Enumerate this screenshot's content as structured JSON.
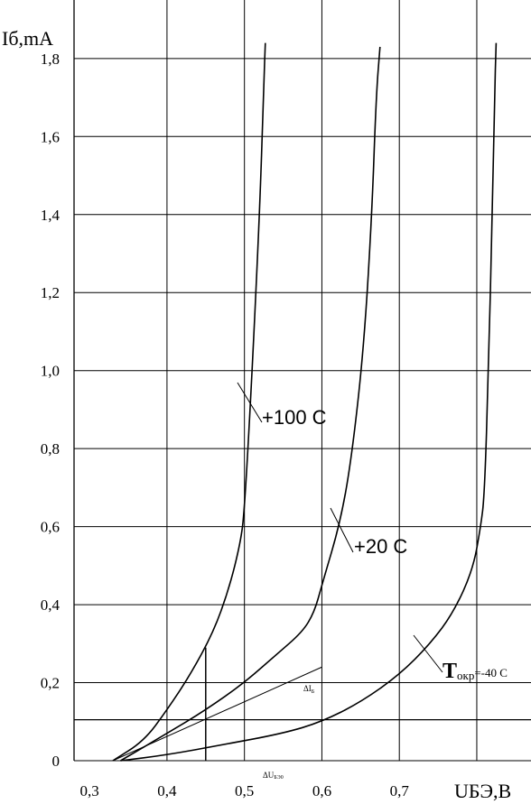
{
  "chart_data": {
    "type": "line",
    "ylabel": "Iб,mA",
    "xlabel": "UБЭ,B",
    "x_ticks": [
      "0,3",
      "0,4",
      "0,5",
      "0,6",
      "0,7"
    ],
    "y_ticks": [
      "0",
      "0,2",
      "0,4",
      "0,6",
      "0,8",
      "1,0",
      "1,2",
      "1,4",
      "1,6",
      "1,8"
    ],
    "xlim": [
      0.28,
      0.87
    ],
    "ylim": [
      0.0,
      1.95
    ],
    "grid": true,
    "series": [
      {
        "name": "+100 C",
        "points": [
          [
            0.33,
            0.0
          ],
          [
            0.37,
            0.05
          ],
          [
            0.4,
            0.13
          ],
          [
            0.43,
            0.22
          ],
          [
            0.46,
            0.33
          ],
          [
            0.48,
            0.44
          ],
          [
            0.495,
            0.56
          ],
          [
            0.5,
            0.64
          ],
          [
            0.51,
            1.0
          ],
          [
            0.52,
            1.42
          ],
          [
            0.525,
            1.74
          ],
          [
            0.527,
            1.84
          ]
        ]
      },
      {
        "name": "+20 C",
        "points": [
          [
            0.34,
            0.0
          ],
          [
            0.4,
            0.07
          ],
          [
            0.45,
            0.13
          ],
          [
            0.5,
            0.2
          ],
          [
            0.54,
            0.27
          ],
          [
            0.575,
            0.33
          ],
          [
            0.59,
            0.38
          ],
          [
            0.6,
            0.45
          ],
          [
            0.625,
            0.62
          ],
          [
            0.64,
            0.8
          ],
          [
            0.655,
            1.08
          ],
          [
            0.665,
            1.42
          ],
          [
            0.67,
            1.7
          ],
          [
            0.675,
            1.83
          ]
        ]
      },
      {
        "name": "Tокр=-40 C",
        "points": [
          [
            0.34,
            0.0
          ],
          [
            0.4,
            0.015
          ],
          [
            0.47,
            0.04
          ],
          [
            0.55,
            0.07
          ],
          [
            0.6,
            0.1
          ],
          [
            0.65,
            0.15
          ],
          [
            0.7,
            0.22
          ],
          [
            0.74,
            0.3
          ],
          [
            0.77,
            0.38
          ],
          [
            0.795,
            0.49
          ],
          [
            0.805,
            0.6
          ],
          [
            0.81,
            0.68
          ],
          [
            0.815,
            1.0
          ],
          [
            0.82,
            1.4
          ],
          [
            0.823,
            1.7
          ],
          [
            0.825,
            1.84
          ]
        ]
      }
    ],
    "tangent_line": {
      "x1": 0.33,
      "y1": 0.0,
      "x2": 0.6,
      "y2": 0.24
    },
    "horizontal_ref": 0.105,
    "vertical_ref": 0.45,
    "vertical_ref_top": 0.29,
    "labels": {
      "curve_100": "+100 C",
      "curve_20": "+20 C",
      "curve_40_main": "T",
      "curve_40_sub": "окр",
      "curve_40_rest": "=-40 C",
      "delta_ib": "ΔI",
      "delta_ib_sub": "Б",
      "delta_u": "ΔU",
      "delta_u_sub": "БЭ0"
    }
  }
}
